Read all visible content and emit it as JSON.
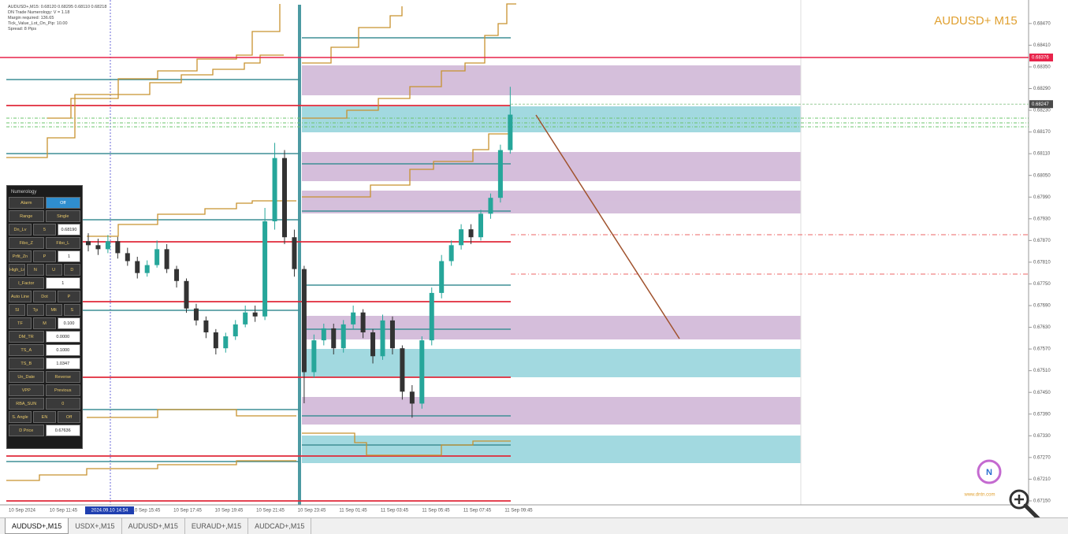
{
  "info_lines": [
    "AUDUSD+,M15: 0.68120 0.68295 0.68110 0.68218",
    "DN Trade Numerology: V = 1.18",
    "Margin required: 136.65",
    "Tick_Value_Lot_On_Pip: 10.00",
    "Spread: 8 Pips"
  ],
  "symbol_title": "AUDUSD+ M15",
  "cursor_label": "2024.09.10 14:54",
  "logo_text": "www.dntn.com",
  "tabs": [
    "AUDUSD+,M15",
    "USDX+,M15",
    "AUDUSD+,M15",
    "EURAUD+,M15",
    "AUDCAD+,M15"
  ],
  "panel": {
    "title": "Numerology",
    "rows": [
      [
        "Alarm",
        "Off"
      ],
      [
        "Range",
        "Single"
      ],
      [
        "Dn_Lv",
        "5",
        "0.68190"
      ],
      [
        "Fibo_Z",
        "Fibo_L"
      ],
      [
        "Prfit_Zn",
        "P",
        "1"
      ],
      [
        "High_Ln",
        "N",
        "U",
        "D"
      ],
      [
        "I_Factor",
        "1"
      ],
      [
        "Auto Line",
        "Dot",
        "P"
      ],
      [
        "Sl",
        "Tp",
        "Mlt",
        "S"
      ],
      [
        "TF",
        "M",
        "0.100"
      ],
      [
        "DM_TR",
        "0.0000"
      ],
      [
        "TS_A",
        "0.1000"
      ],
      [
        "TS_B",
        "1.0347"
      ],
      [
        "Un_Date",
        "Reverse"
      ],
      [
        "VPP",
        "Previous"
      ],
      [
        "RBA_SUN",
        "0"
      ],
      [
        "S. Angle",
        "EN",
        "Off"
      ],
      [
        "D Price",
        "0.67636"
      ]
    ]
  },
  "chart_data": {
    "type": "candlestick",
    "up_color": "#26a69a",
    "down_color": "#333333",
    "grid": false,
    "ylim": [
      0.67139,
      0.68535
    ],
    "yticks": [
      {
        "value": 0.6847,
        "label": "0.68470"
      },
      {
        "value": 0.6841,
        "label": "0.68410"
      },
      {
        "value": 0.6835,
        "label": "0.68350"
      },
      {
        "value": 0.6829,
        "label": "0.68290"
      },
      {
        "value": 0.6823,
        "label": "0.68230"
      },
      {
        "value": 0.6817,
        "label": "0.68170"
      },
      {
        "value": 0.6811,
        "label": "0.68110"
      },
      {
        "value": 0.6805,
        "label": "0.68050"
      },
      {
        "value": 0.6799,
        "label": "0.67990"
      },
      {
        "value": 0.6793,
        "label": "0.67930"
      },
      {
        "value": 0.6787,
        "label": "0.67870"
      },
      {
        "value": 0.6781,
        "label": "0.67810"
      },
      {
        "value": 0.6775,
        "label": "0.67750"
      },
      {
        "value": 0.6769,
        "label": "0.67690"
      },
      {
        "value": 0.6763,
        "label": "0.67630"
      },
      {
        "value": 0.6757,
        "label": "0.67570"
      },
      {
        "value": 0.6751,
        "label": "0.67510"
      },
      {
        "value": 0.6745,
        "label": "0.67450"
      },
      {
        "value": 0.6739,
        "label": "0.67390"
      },
      {
        "value": 0.6733,
        "label": "0.67330"
      },
      {
        "value": 0.6727,
        "label": "0.67270"
      },
      {
        "value": 0.6721,
        "label": "0.67210"
      },
      {
        "value": 0.6715,
        "label": "0.67150"
      }
    ],
    "price_labels": [
      {
        "value": 0.68376,
        "color": "#e8234a"
      },
      {
        "value": 0.68247,
        "color": "#4a4a4a"
      }
    ],
    "x_labels": [
      "10 Sep 2024",
      "10 Sep 11:45",
      "10 Sep 13:45",
      "10 Sep 15:45",
      "10 Sep 17:45",
      "10 Sep 19:45",
      "10 Sep 21:45",
      "10 Sep 23:45",
      "11 Sep 01:45",
      "11 Sep 03:45",
      "11 Sep 05:45",
      "11 Sep 07:45",
      "11 Sep 09:45"
    ],
    "candles": [
      [
        0.67868,
        0.6789,
        0.6784,
        0.67857
      ],
      [
        0.67857,
        0.67875,
        0.6783,
        0.67846
      ],
      [
        0.67846,
        0.67885,
        0.67835,
        0.67868
      ],
      [
        0.67868,
        0.6788,
        0.6782,
        0.67835
      ],
      [
        0.67835,
        0.6785,
        0.678,
        0.67813
      ],
      [
        0.67813,
        0.67825,
        0.67765,
        0.6778
      ],
      [
        0.6778,
        0.67815,
        0.6777,
        0.67802
      ],
      [
        0.67802,
        0.6787,
        0.67795,
        0.67846
      ],
      [
        0.67846,
        0.6786,
        0.6778,
        0.67791
      ],
      [
        0.67791,
        0.678,
        0.6774,
        0.67758
      ],
      [
        0.67758,
        0.67765,
        0.6767,
        0.67682
      ],
      [
        0.67682,
        0.67695,
        0.67635,
        0.67649
      ],
      [
        0.67649,
        0.6766,
        0.676,
        0.67616
      ],
      [
        0.67616,
        0.67625,
        0.67555,
        0.67572
      ],
      [
        0.67572,
        0.67615,
        0.6756,
        0.67605
      ],
      [
        0.67605,
        0.6765,
        0.67595,
        0.67638
      ],
      [
        0.67638,
        0.6769,
        0.6763,
        0.67671
      ],
      [
        0.67671,
        0.6769,
        0.67645,
        0.6766
      ],
      [
        0.6766,
        0.6796,
        0.6765,
        0.67923
      ],
      [
        0.67923,
        0.6814,
        0.679,
        0.68098
      ],
      [
        0.68098,
        0.6812,
        0.6786,
        0.67879
      ],
      [
        0.67879,
        0.679,
        0.6777,
        0.67791
      ],
      [
        0.67791,
        0.678,
        0.6742,
        0.67506
      ],
      [
        0.67506,
        0.6761,
        0.6749,
        0.67594
      ],
      [
        0.67594,
        0.6764,
        0.6758,
        0.67627
      ],
      [
        0.67627,
        0.6764,
        0.67555,
        0.67572
      ],
      [
        0.67572,
        0.6765,
        0.6756,
        0.67638
      ],
      [
        0.67638,
        0.6769,
        0.67625,
        0.67671
      ],
      [
        0.67671,
        0.6768,
        0.676,
        0.67616
      ],
      [
        0.67616,
        0.67625,
        0.6753,
        0.6755
      ],
      [
        0.6755,
        0.67665,
        0.6754,
        0.67649
      ],
      [
        0.67649,
        0.6766,
        0.67555,
        0.67572
      ],
      [
        0.67572,
        0.6758,
        0.6743,
        0.67452
      ],
      [
        0.67452,
        0.6747,
        0.6738,
        0.67419
      ],
      [
        0.67419,
        0.67605,
        0.67405,
        0.67594
      ],
      [
        0.67594,
        0.6774,
        0.6758,
        0.67725
      ],
      [
        0.67725,
        0.6783,
        0.6771,
        0.67813
      ],
      [
        0.67813,
        0.6787,
        0.678,
        0.67857
      ],
      [
        0.67857,
        0.67915,
        0.67845,
        0.67901
      ],
      [
        0.67901,
        0.67915,
        0.6786,
        0.67879
      ],
      [
        0.67879,
        0.67955,
        0.6787,
        0.67944
      ],
      [
        0.67944,
        0.68,
        0.6793,
        0.67988
      ],
      [
        0.67988,
        0.68135,
        0.67975,
        0.6812
      ],
      [
        0.6812,
        0.68295,
        0.6811,
        0.68218
      ]
    ]
  }
}
